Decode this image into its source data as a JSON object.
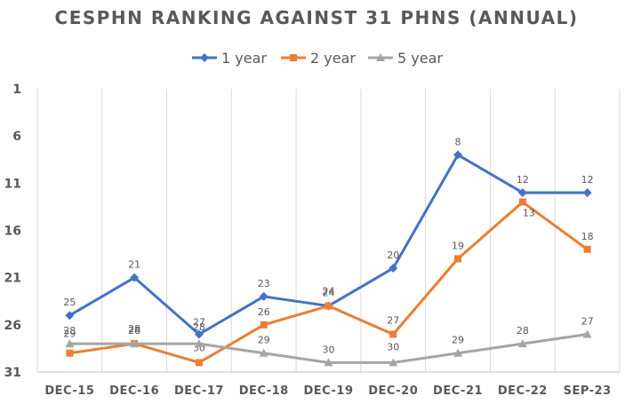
{
  "chart_data": {
    "type": "line",
    "title": "CESPHN RANKING AGAINST 31 PHNS (ANNUAL)",
    "categories": [
      "DEC-15",
      "DEC-16",
      "DEC-17",
      "DEC-18",
      "DEC-19",
      "DEC-20",
      "DEC-21",
      "DEC-22",
      "SEP-23"
    ],
    "y_ticks": [
      "1",
      "6",
      "11",
      "16",
      "21",
      "26",
      "31"
    ],
    "ylim": [
      1,
      31
    ],
    "y_reversed": true,
    "grid": "vertical",
    "legend_position": "top",
    "series": [
      {
        "name": "1 year",
        "color": "#4472C4",
        "marker": "diamond",
        "values": [
          25,
          21,
          27,
          23,
          24,
          20,
          8,
          12,
          12
        ]
      },
      {
        "name": "2 year",
        "color": "#ED7D31",
        "marker": "square",
        "values": [
          29,
          28,
          30,
          26,
          24,
          27,
          19,
          13,
          18
        ]
      },
      {
        "name": "5 year",
        "color": "#A5A5A5",
        "marker": "triangle",
        "values": [
          28,
          28,
          28,
          29,
          30,
          30,
          29,
          28,
          27
        ]
      }
    ],
    "data_labels": [
      [
        "25",
        "21",
        "27",
        "23",
        "24",
        "20",
        "8",
        "12",
        "12"
      ],
      [
        "29",
        "28",
        "30",
        "26",
        "24",
        "27",
        "19",
        "13",
        "18"
      ],
      [
        "28",
        "28",
        "28",
        "29",
        "30",
        "30",
        "29",
        "28",
        "27"
      ]
    ]
  }
}
